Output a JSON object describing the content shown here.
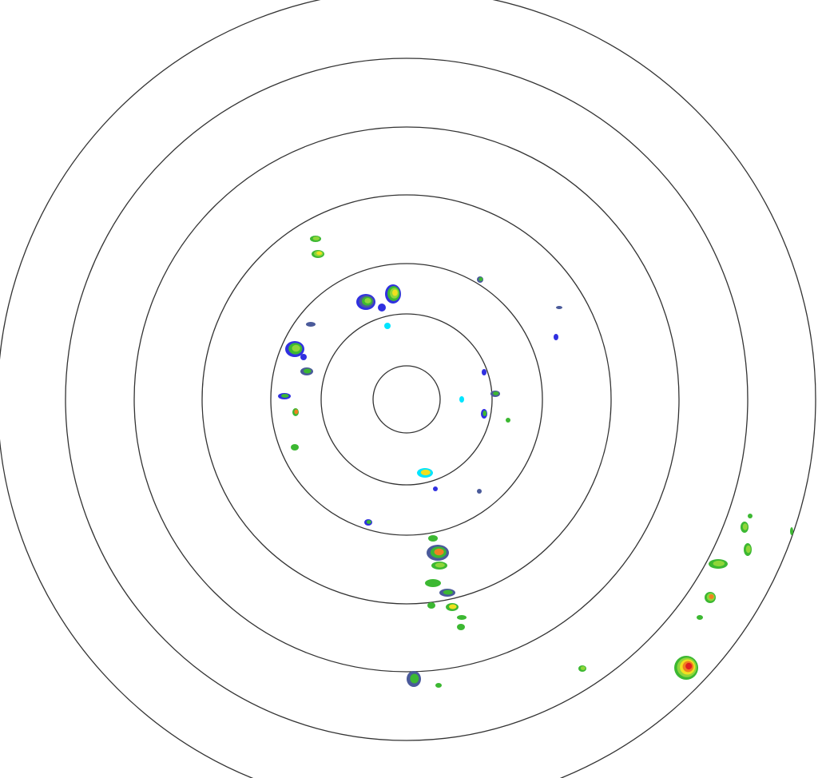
{
  "radar": {
    "range_ring_count": 7,
    "ring_color": "#333333",
    "background_color": "#ffffff",
    "reflectivity_palette": {
      "light": "#3030e0",
      "grey_blue": "#4a5a9a",
      "cyan": "#00e5ff",
      "green": "#3cb832",
      "light_green": "#8fd63a",
      "yellow": "#f0e020",
      "orange": "#f08020",
      "red": "#e02020"
    }
  }
}
